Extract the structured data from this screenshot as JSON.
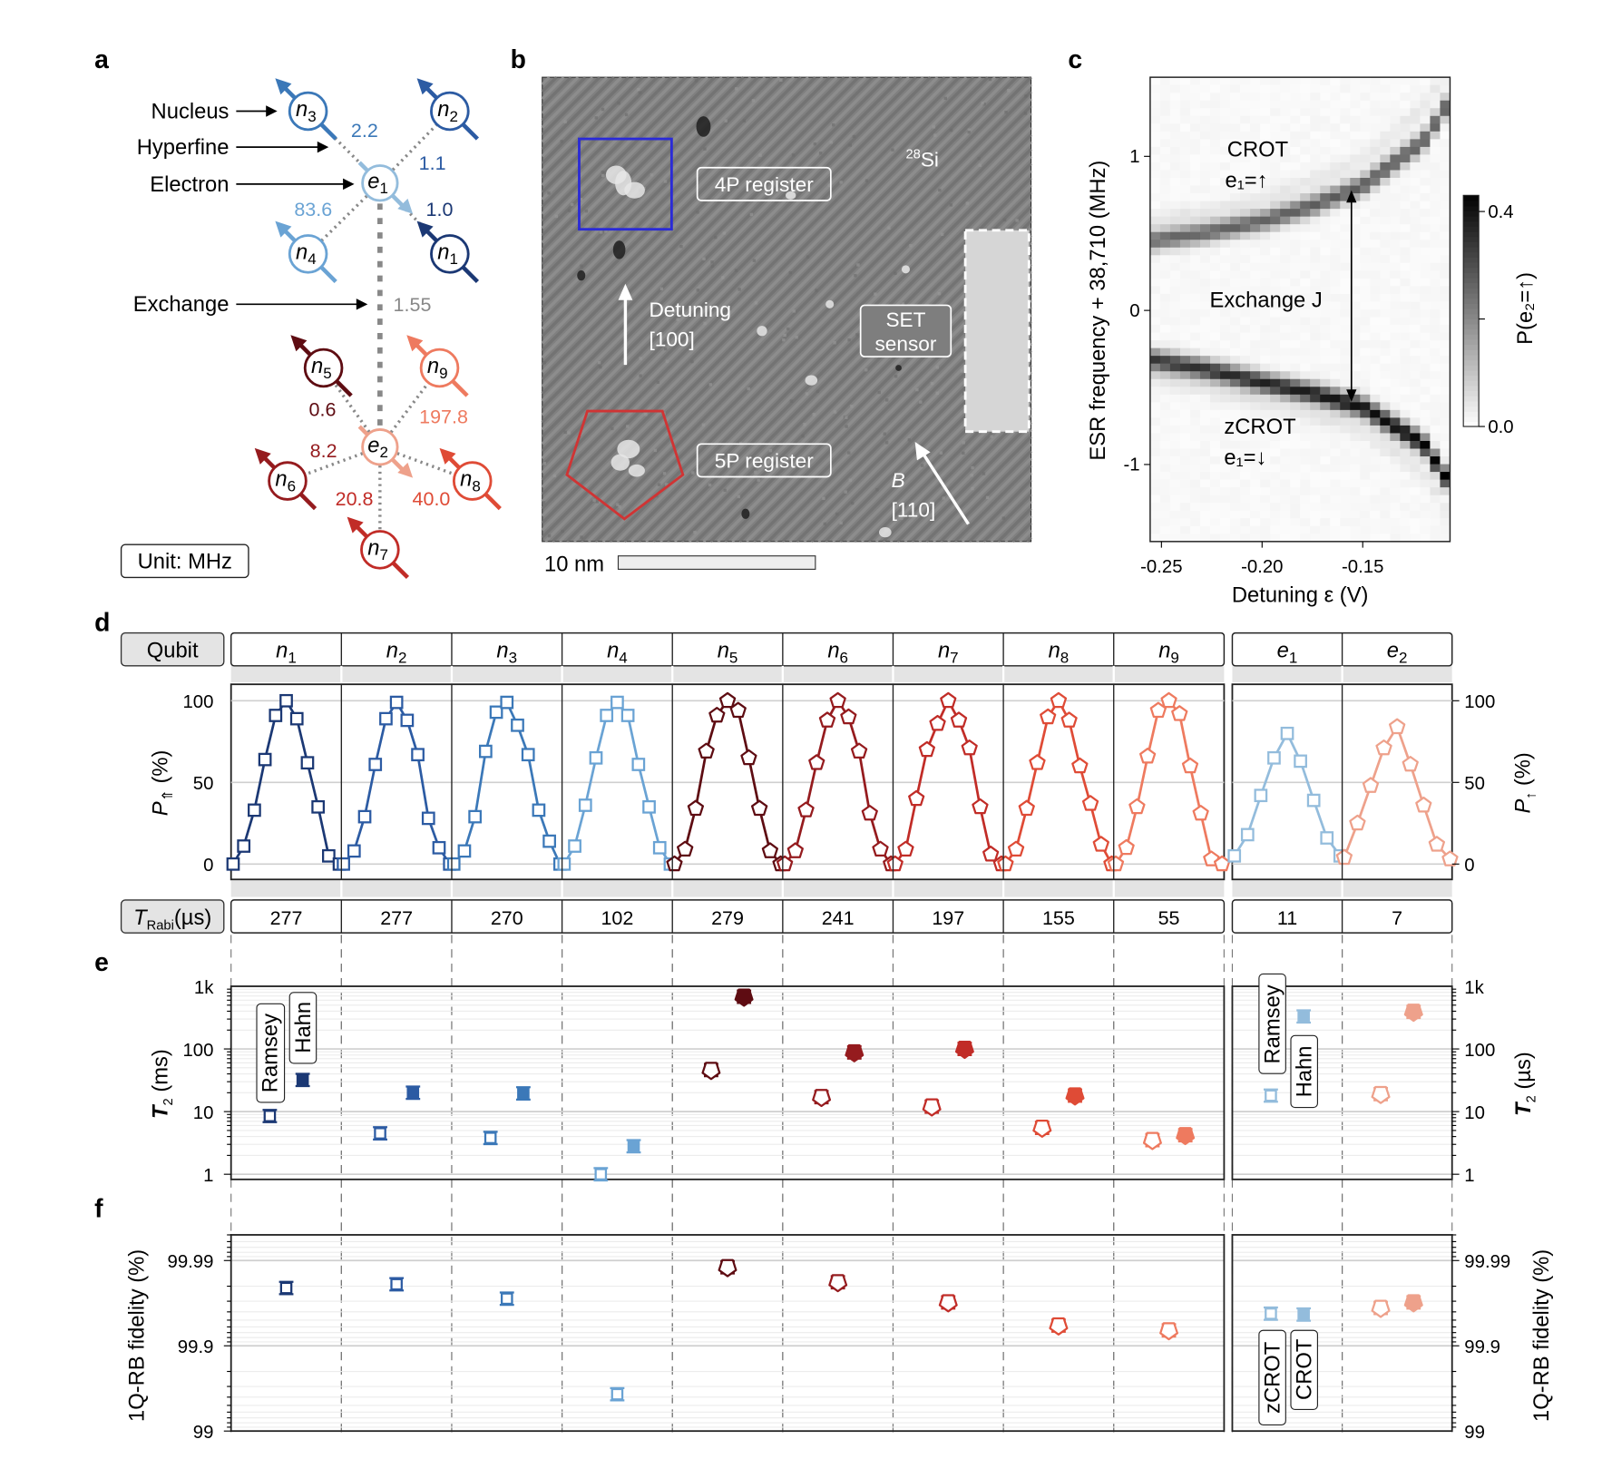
{
  "panel_labels": {
    "a": "a",
    "b": "b",
    "c": "c",
    "d": "d",
    "e": "e",
    "f": "f"
  },
  "panel_a": {
    "annotations": {
      "nucleus": "Nucleus",
      "hyperfine": "Hyperfine",
      "electron": "Electron",
      "exchange": "Exchange"
    },
    "unit": "Unit: MHz",
    "nodes": [
      {
        "id": "e1",
        "base": "e",
        "sub": "1",
        "type": "electron",
        "color": "#93bcdc"
      },
      {
        "id": "e2",
        "base": "e",
        "sub": "2",
        "type": "electron",
        "color": "#eea18b"
      },
      {
        "id": "n1",
        "base": "n",
        "sub": "1",
        "type": "nucleus",
        "color": "#1b3874"
      },
      {
        "id": "n2",
        "base": "n",
        "sub": "2",
        "type": "nucleus",
        "color": "#2c5ba3"
      },
      {
        "id": "n3",
        "base": "n",
        "sub": "3",
        "type": "nucleus",
        "color": "#3b78b8"
      },
      {
        "id": "n4",
        "base": "n",
        "sub": "4",
        "type": "nucleus",
        "color": "#6aa3d4"
      },
      {
        "id": "n5",
        "base": "n",
        "sub": "5",
        "type": "nucleus",
        "color": "#5e0c12"
      },
      {
        "id": "n6",
        "base": "n",
        "sub": "6",
        "type": "nucleus",
        "color": "#951b1e"
      },
      {
        "id": "n7",
        "base": "n",
        "sub": "7",
        "type": "nucleus",
        "color": "#c12c27"
      },
      {
        "id": "n8",
        "base": "n",
        "sub": "8",
        "type": "nucleus",
        "color": "#df4b36"
      },
      {
        "id": "n9",
        "base": "n",
        "sub": "9",
        "type": "nucleus",
        "color": "#ee7a5f"
      }
    ],
    "hyperfine": [
      {
        "electron": "e1",
        "nucleus": "n3",
        "value": "2.2"
      },
      {
        "electron": "e1",
        "nucleus": "n2",
        "value": "1.1"
      },
      {
        "electron": "e1",
        "nucleus": "n4",
        "value": "83.6"
      },
      {
        "electron": "e1",
        "nucleus": "n1",
        "value": "1.0"
      },
      {
        "electron": "e2",
        "nucleus": "n5",
        "value": "0.6"
      },
      {
        "electron": "e2",
        "nucleus": "n9",
        "value": "197.8"
      },
      {
        "electron": "e2",
        "nucleus": "n6",
        "value": "8.2"
      },
      {
        "electron": "e2",
        "nucleus": "n7",
        "value": "20.8"
      },
      {
        "electron": "e2",
        "nucleus": "n8",
        "value": "40.0"
      }
    ],
    "exchange": {
      "value": "1.55",
      "color": "#888888"
    }
  },
  "panel_b": {
    "labels": {
      "register_4p": "4P register",
      "register_5p": "5P register",
      "si_mass": "28",
      "si": "Si",
      "detuning": "Detuning",
      "detuning_dir": "[100]",
      "set": "SET",
      "sensor": "sensor",
      "b_field": "B",
      "b_dir": "[110]",
      "scale_bar": "10 nm"
    },
    "colors": {
      "register_4p": "#2a2ad8",
      "register_5p": "#d03434"
    }
  },
  "chart_data": [
    {
      "panel": "c",
      "type": "heatmap",
      "xlabel": "Detuning ε (V)",
      "ylabel": "ESR frequency + 38,710 (MHz)",
      "xlim": [
        -0.256,
        -0.107
      ],
      "ylim": [
        -1.5,
        1.5
      ],
      "xticks": [
        {
          "value": -0.25,
          "label": "-0.25"
        },
        {
          "value": -0.2,
          "label": "-0.20"
        },
        {
          "value": -0.15,
          "label": "-0.15"
        }
      ],
      "yticks": [
        {
          "value": 1,
          "label": "1"
        },
        {
          "value": 0,
          "label": "0"
        },
        {
          "value": -1,
          "label": "-1"
        }
      ],
      "colorbar": {
        "label": "P(e₂=↑)",
        "range": [
          0,
          0.43
        ],
        "ticks": [
          {
            "value": 0.4,
            "label": "0.4"
          },
          {
            "value": 0.2,
            "label": ""
          },
          {
            "value": 0.0,
            "label": "0.0"
          }
        ],
        "colormap": "white-to-black"
      },
      "branches": [
        {
          "label": "CROT",
          "condition": "e₁=↑",
          "points": [
            [
              -0.256,
              0.45
            ],
            [
              -0.23,
              0.5
            ],
            [
              -0.2,
              0.58
            ],
            [
              -0.175,
              0.68
            ],
            [
              -0.15,
              0.81
            ],
            [
              -0.12,
              1.1
            ],
            [
              -0.107,
              1.36
            ]
          ],
          "peak": [
            0.25,
            0.28
          ]
        },
        {
          "label": "zCROT",
          "condition": "e₁=↓",
          "points": [
            [
              -0.256,
              -0.32
            ],
            [
              -0.23,
              -0.38
            ],
            [
              -0.2,
              -0.47
            ],
            [
              -0.175,
              -0.54
            ],
            [
              -0.15,
              -0.63
            ],
            [
              -0.12,
              -0.87
            ],
            [
              -0.107,
              -1.13
            ]
          ],
          "peak": [
            0.33,
            0.43
          ]
        }
      ],
      "annotation": "Exchange J"
    },
    {
      "panel": "d",
      "type": "line",
      "ylim": [
        -10,
        110
      ],
      "yticks": [
        {
          "value": 0,
          "label": "0"
        },
        {
          "value": 50,
          "label": "50"
        },
        {
          "value": 100,
          "label": "100"
        }
      ],
      "ylabel_left": {
        "main": "P",
        "sub": "⇑",
        "unit": " (%)"
      },
      "ylabel_right": {
        "main": "P",
        "sub": "↑",
        "unit": " (%)"
      },
      "row_header": "Qubit",
      "rabi_header": {
        "main": "T",
        "sub": "Rabi",
        "unit": "(µs)"
      },
      "series": [
        {
          "id": "n1",
          "base": "n",
          "sub": "1",
          "t_rabi": "277",
          "color": "#1b3874",
          "marker": "square",
          "values": [
            0,
            11,
            33,
            64,
            91,
            100,
            89,
            62,
            35,
            5,
            0
          ]
        },
        {
          "id": "n2",
          "base": "n",
          "sub": "2",
          "t_rabi": "277",
          "color": "#2c5ba3",
          "marker": "square",
          "values": [
            0,
            8,
            29,
            61,
            89,
            99,
            88,
            67,
            28,
            10,
            0
          ]
        },
        {
          "id": "n3",
          "base": "n",
          "sub": "3",
          "t_rabi": "270",
          "color": "#3b78b8",
          "marker": "square",
          "values": [
            0,
            8,
            29,
            69,
            93,
            99,
            85,
            67,
            33,
            14,
            0
          ]
        },
        {
          "id": "n4",
          "base": "n",
          "sub": "4",
          "t_rabi": "102",
          "color": "#6aa3d4",
          "marker": "square",
          "values": [
            0,
            11,
            36,
            65,
            91,
            99,
            91,
            61,
            35,
            10,
            0
          ]
        },
        {
          "id": "n5",
          "base": "n",
          "sub": "5",
          "t_rabi": "279",
          "color": "#5e0c12",
          "marker": "pentagon",
          "values": [
            0,
            9,
            34,
            69,
            91,
            100,
            94,
            65,
            34,
            8,
            0
          ]
        },
        {
          "id": "n6",
          "base": "n",
          "sub": "6",
          "t_rabi": "241",
          "color": "#951b1e",
          "marker": "pentagon",
          "values": [
            0,
            8,
            33,
            62,
            88,
            100,
            90,
            69,
            31,
            9,
            0
          ]
        },
        {
          "id": "n7",
          "base": "n",
          "sub": "7",
          "t_rabi": "197",
          "color": "#c12c27",
          "marker": "pentagon",
          "values": [
            0,
            9,
            40,
            70,
            86,
            100,
            88,
            71,
            35,
            6,
            0
          ]
        },
        {
          "id": "n8",
          "base": "n",
          "sub": "8",
          "t_rabi": "155",
          "color": "#df4b36",
          "marker": "pentagon",
          "values": [
            0,
            9,
            34,
            62,
            90,
            100,
            88,
            60,
            37,
            12,
            0
          ]
        },
        {
          "id": "n9",
          "base": "n",
          "sub": "9",
          "t_rabi": "55",
          "color": "#ee7a5f",
          "marker": "pentagon",
          "values": [
            0,
            10,
            35,
            66,
            94,
            100,
            92,
            60,
            31,
            3,
            0
          ]
        },
        {
          "id": "e1",
          "base": "e",
          "sub": "1",
          "t_rabi": "11",
          "color": "#93bcdc",
          "marker": "square",
          "values": [
            5,
            18,
            42,
            65,
            80,
            63,
            39,
            16,
            5
          ]
        },
        {
          "id": "e2",
          "base": "e",
          "sub": "2",
          "t_rabi": "7",
          "color": "#eea18b",
          "marker": "pentagon",
          "values": [
            4,
            25,
            48,
            71,
            84,
            61,
            36,
            12,
            3
          ]
        }
      ]
    },
    {
      "panel": "e",
      "type": "scatter",
      "yscale": "log",
      "ylim": [
        0.83,
        1000
      ],
      "yticks": [
        {
          "value": 1,
          "label": "1"
        },
        {
          "value": 10,
          "label": "10"
        },
        {
          "value": 100,
          "label": "100"
        },
        {
          "value": 1000,
          "label": "1k"
        }
      ],
      "ylabel_left": {
        "main": "T",
        "sub": "2",
        "unit": " (ms)"
      },
      "ylabel_right": {
        "main": "T",
        "sub": "2",
        "unit": " (µs)"
      },
      "legend": {
        "open": "Ramsey",
        "filled": "Hahn"
      },
      "series": [
        {
          "qubit": "n1",
          "ramsey": 8.5,
          "hahn": 32
        },
        {
          "qubit": "n2",
          "ramsey": 4.5,
          "hahn": 20
        },
        {
          "qubit": "n3",
          "ramsey": 3.8,
          "hahn": 19.5
        },
        {
          "qubit": "n4",
          "ramsey": 1.0,
          "hahn": 2.8
        },
        {
          "qubit": "n5",
          "ramsey": 46,
          "hahn": 680
        },
        {
          "qubit": "n6",
          "ramsey": 17,
          "hahn": 88
        },
        {
          "qubit": "n7",
          "ramsey": 12,
          "hahn": 100
        },
        {
          "qubit": "n8",
          "ramsey": 5.5,
          "hahn": 18
        },
        {
          "qubit": "n9",
          "ramsey": 3.5,
          "hahn": 4.2
        },
        {
          "qubit": "e1",
          "ramsey": 18,
          "hahn": 330
        },
        {
          "qubit": "e2",
          "ramsey": 19,
          "hahn": 390
        }
      ]
    },
    {
      "panel": "f",
      "type": "scatter",
      "yscale": "log(100 - fidelity)",
      "ylim": [
        99,
        99.995
      ],
      "yticks": [
        {
          "value": 99,
          "label": "99"
        },
        {
          "value": 99.9,
          "label": "99.9"
        },
        {
          "value": 99.99,
          "label": "99.99"
        }
      ],
      "ylabel": "1Q-RB fidelity (%)",
      "legend": {
        "open": "zCROT",
        "filled": "CROT"
      },
      "series": [
        {
          "qubit": "n1",
          "fidelity": 99.979
        },
        {
          "qubit": "n2",
          "fidelity": 99.981
        },
        {
          "qubit": "n3",
          "fidelity": 99.972
        },
        {
          "qubit": "n4",
          "fidelity": 99.63
        },
        {
          "qubit": "n5",
          "fidelity": 99.988
        },
        {
          "qubit": "n6",
          "fidelity": 99.982
        },
        {
          "qubit": "n7",
          "fidelity": 99.969
        },
        {
          "qubit": "n8",
          "fidelity": 99.942
        },
        {
          "qubit": "n9",
          "fidelity": 99.934
        },
        {
          "qubit": "e1",
          "zcrot": 99.958,
          "crot": 99.957
        },
        {
          "qubit": "e2",
          "zcrot": 99.964,
          "crot": 99.969
        }
      ]
    }
  ]
}
